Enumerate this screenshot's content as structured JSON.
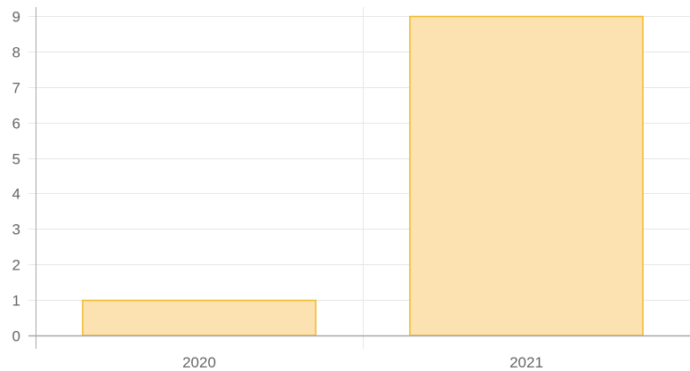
{
  "chart_data": {
    "type": "bar",
    "categories": [
      "2020",
      "2021"
    ],
    "series": [
      {
        "values": [
          1,
          9
        ]
      }
    ],
    "ylim": [
      0,
      9
    ],
    "yticks": [
      "0",
      "1",
      "2",
      "3",
      "4",
      "5",
      "6",
      "7",
      "8",
      "9"
    ],
    "grid": true,
    "legend": "none",
    "title": "",
    "xlabel": "",
    "ylabel": "",
    "colors": {
      "bar_fill": "#fce2b0",
      "bar_stroke": "#f1b92b",
      "grid": "#e6e6e6",
      "axis": "#a9a9a9",
      "tick_text": "#666666"
    }
  }
}
